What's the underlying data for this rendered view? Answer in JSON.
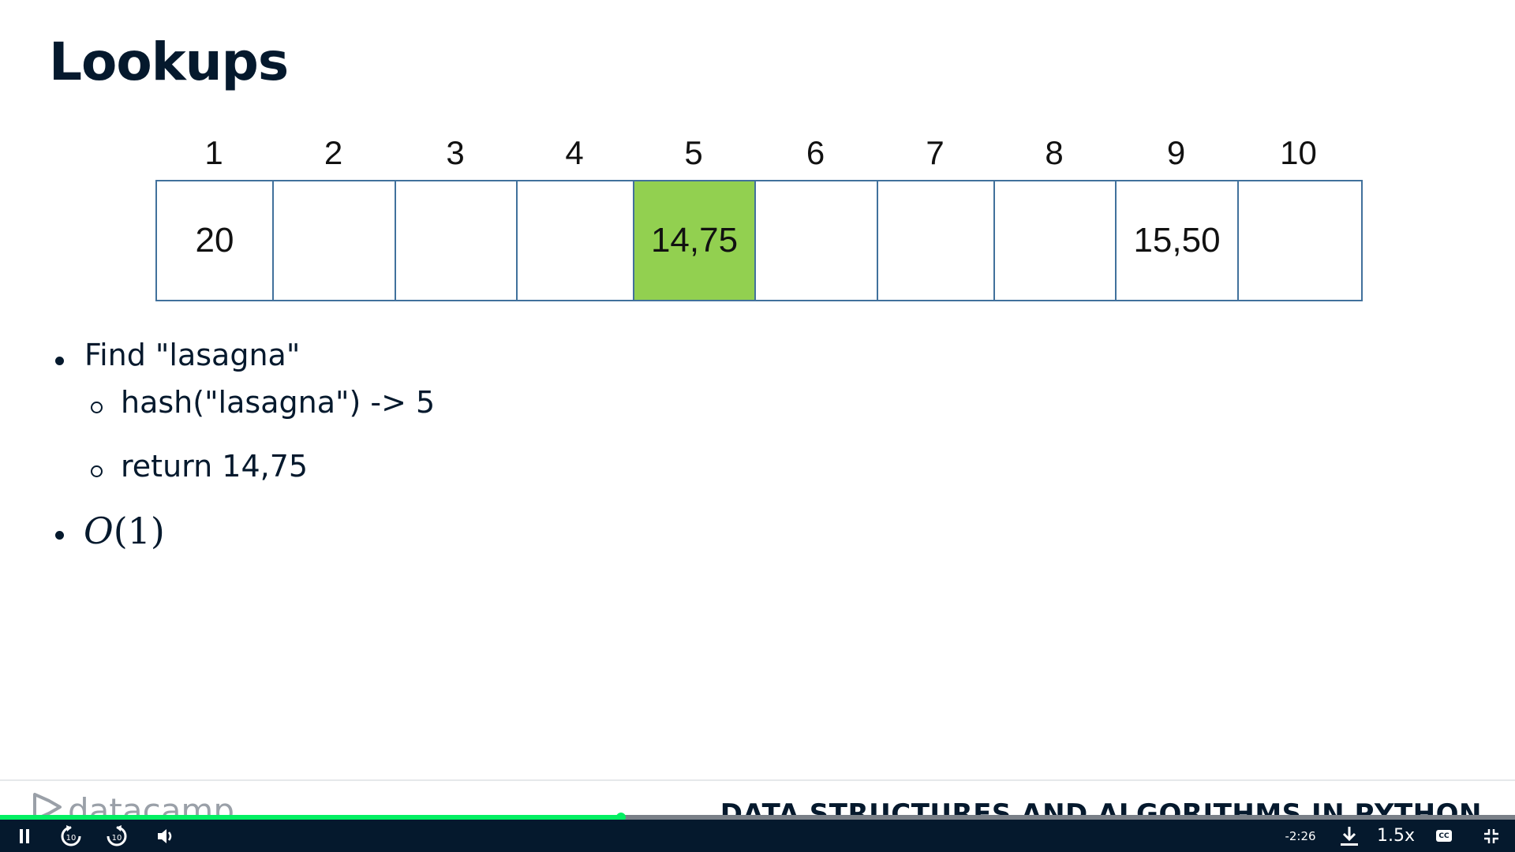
{
  "slide": {
    "title": "Lookups",
    "indices": [
      "1",
      "2",
      "3",
      "4",
      "5",
      "6",
      "7",
      "8",
      "9",
      "10"
    ],
    "cells": [
      "20",
      "",
      "",
      "",
      "14,75",
      "",
      "",
      "",
      "15,50",
      ""
    ],
    "highlight_index": 4,
    "highlight_color": "#92d050",
    "border_color": "#41719c",
    "bullets": {
      "find": "Find \"lasagna\"",
      "hash": "hash(\"lasagna\") -> 5",
      "ret": "return 14,75",
      "complexity_var": "O",
      "complexity_arg": "(1)"
    }
  },
  "footer": {
    "logo_text": "datacamp",
    "course_title": "DATA STRUCTURES AND ALGORITHMS IN PYTHON"
  },
  "player": {
    "progress": 0.41,
    "accent_color": "#03ef62",
    "time_remaining": "-2:26",
    "speed": "1.5x",
    "cc_label": "CC",
    "skip_seconds": "10",
    "icons": {
      "pause": "pause-icon",
      "rewind": "rewind-10-icon",
      "forward": "forward-10-icon",
      "volume": "volume-icon",
      "download": "download-icon",
      "captions": "captions-icon",
      "exit_fullscreen": "exit-fullscreen-icon"
    }
  }
}
